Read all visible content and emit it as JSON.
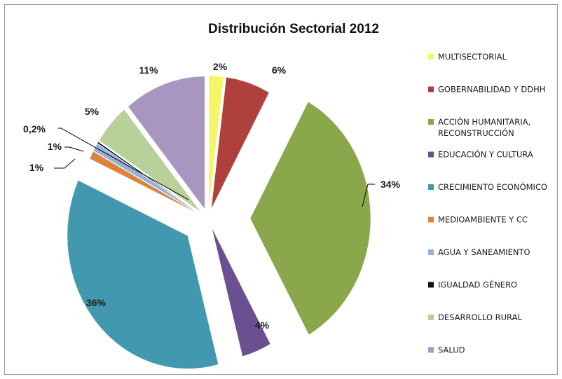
{
  "chart_data": {
    "type": "pie",
    "title": "Distribución Sectorial 2012",
    "legend_position": "right",
    "slices": [
      {
        "label": [
          "MULTISECTORIAL"
        ],
        "value": 2,
        "pct_label": "2%",
        "color": "#F5F569"
      },
      {
        "label": [
          "GOBERNABILIDAD Y DDHH"
        ],
        "value": 6,
        "pct_label": "6%",
        "color": "#B0403D"
      },
      {
        "label": [
          "ACCIÓN HUMANITARIA,",
          "RECONSTRUCCIÓN"
        ],
        "value": 34,
        "pct_label": "34%",
        "color": "#8AA74B"
      },
      {
        "label": [
          "EDUCACIÓN Y CULTURA"
        ],
        "value": 4,
        "pct_label": "4%",
        "color": "#6A5091"
      },
      {
        "label": [
          "CRECIMIENTO ECONÓMICO"
        ],
        "value": 36,
        "pct_label": "36%",
        "color": "#4298AF"
      },
      {
        "label": [
          "MEDIOAMBIENTE Y CC"
        ],
        "value": 1,
        "pct_label": "1%",
        "color": "#DB843D"
      },
      {
        "label": [
          "AGUA Y SANEAMIENTO"
        ],
        "value": 1,
        "pct_label": "1%",
        "color": "#95B0D9"
      },
      {
        "label": [
          "IGUALDAD GÉNERO"
        ],
        "value": 0.2,
        "pct_label": "0,2%",
        "color": "#111111"
      },
      {
        "label": [
          "DESARROLLO RURAL"
        ],
        "value": 5,
        "pct_label": "5%",
        "color": "#B8D09A"
      },
      {
        "label": [
          "SALUD"
        ],
        "value": 11,
        "pct_label": "11%",
        "color": "#A797C0"
      }
    ]
  }
}
